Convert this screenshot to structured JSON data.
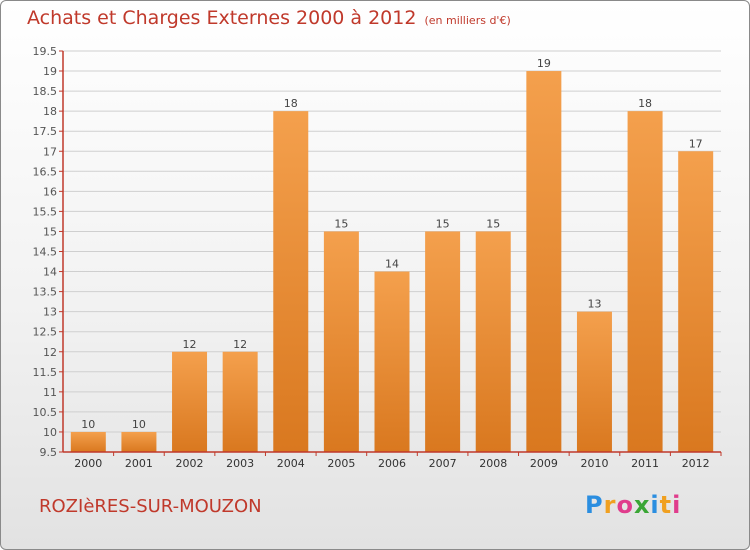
{
  "chart_data": {
    "type": "bar",
    "title": "Achats et Charges Externes 2000 à 2012",
    "subtitle": "(en milliers d'€)",
    "categories": [
      "2000",
      "2001",
      "2002",
      "2003",
      "2004",
      "2005",
      "2006",
      "2007",
      "2008",
      "2009",
      "2010",
      "2011",
      "2012"
    ],
    "values": [
      10,
      10,
      12,
      12,
      18,
      15,
      14,
      15,
      15,
      19,
      13,
      18,
      17
    ],
    "ylim": [
      9.5,
      19.5
    ],
    "yticks": [
      "9.5",
      "10",
      "10.5",
      "11",
      "11.5",
      "12",
      "12.5",
      "13",
      "13.5",
      "14",
      "14.5",
      "15",
      "15.5",
      "16",
      "16.5",
      "17",
      "17.5",
      "18",
      "18.5",
      "19",
      "19.5"
    ],
    "grid": true,
    "legend": "none",
    "colors": {
      "bar": "#f4a04d",
      "bar_dark": "#d9781f",
      "axis": "#c0392b",
      "text": "#c0392b"
    }
  },
  "footer": {
    "place": "ROZIèRES-SUR-MOUZON",
    "logo_letters": [
      "P",
      "r",
      "o",
      "x",
      "i",
      "t",
      "i"
    ],
    "logo_colors": [
      "#2b8ee0",
      "#f0a020",
      "#e03c8c",
      "#3aa635",
      "#2b8ee0",
      "#f0a020",
      "#e03c8c"
    ]
  }
}
